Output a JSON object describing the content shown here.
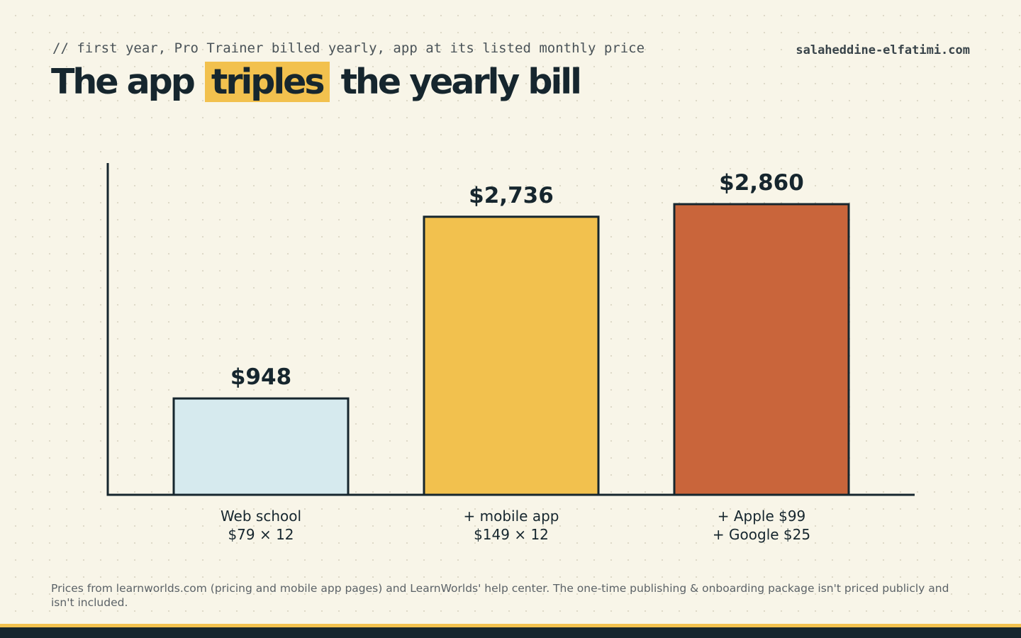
{
  "header": {
    "subtitle": "// first year, Pro Trainer billed yearly, app at its listed monthly price",
    "site": "salaheddine-elfatimi.com",
    "title_before": "The app",
    "title_highlight": "triples",
    "title_after": "the yearly bill"
  },
  "chart_data": {
    "type": "bar",
    "categories": [
      [
        "Web school",
        "$79 × 12"
      ],
      [
        "+ mobile app",
        "$149 × 12"
      ],
      [
        "+ Apple $99",
        "+ Google $25"
      ]
    ],
    "values": [
      948,
      2736,
      2860
    ],
    "value_labels": [
      "$948",
      "$2,736",
      "$2,860"
    ],
    "colors": [
      "#d6eaee",
      "#f2c14e",
      "#c9653b"
    ],
    "ylim": [
      0,
      3500
    ],
    "grid": false
  },
  "footer": {
    "note": "Prices from learnworlds.com (pricing and mobile app pages) and LearnWorlds' help center. The one-time publishing & onboarding package isn't priced publicly and isn't included."
  }
}
